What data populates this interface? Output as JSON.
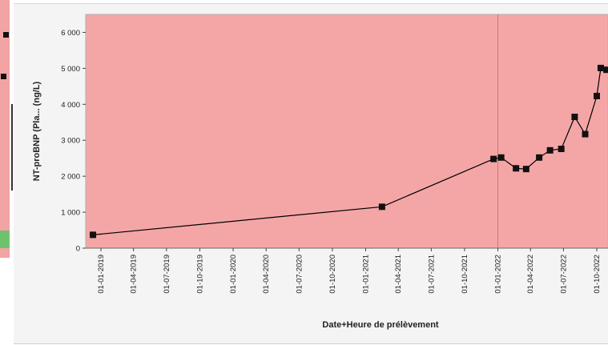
{
  "chart_data": {
    "type": "line",
    "title": "",
    "xlabel": "Date+Heure de prélèvement",
    "ylabel": "NT-proBNP (Pla... (ng/L)",
    "x_ticks": [
      "01-01-2019",
      "01-04-2019",
      "01-07-2019",
      "01-10-2019",
      "01-01-2020",
      "01-04-2020",
      "01-07-2020",
      "01-10-2020",
      "01-01-2021",
      "01-04-2021",
      "01-07-2021",
      "01-10-2021",
      "01-01-2022",
      "01-04-2022",
      "01-07-2022",
      "01-10-2022"
    ],
    "y_ticks": [
      "0",
      "1 000",
      "2 000",
      "3 000",
      "4 000",
      "5 000",
      "6 000"
    ],
    "ylim": [
      0,
      6500
    ],
    "xlim": [
      "2018-11-20",
      "2022-11-01"
    ],
    "grid": false,
    "background_color": "#f4a6a6",
    "line_color": "#000000",
    "reference_line": "2022-01-01",
    "series": [
      {
        "x": [
          "2018-12-10",
          "2021-02-15",
          "2021-12-20",
          "2022-01-10",
          "2022-02-20",
          "2022-03-20",
          "2022-04-25",
          "2022-05-25",
          "2022-06-25",
          "2022-08-01",
          "2022-08-30",
          "2022-10-01",
          "2022-10-12",
          "2022-10-28"
        ],
        "values": [
          370,
          1150,
          2480,
          2520,
          2220,
          2200,
          2520,
          2720,
          2760,
          3650,
          3170,
          4230,
          5010,
          4960
        ]
      }
    ]
  }
}
